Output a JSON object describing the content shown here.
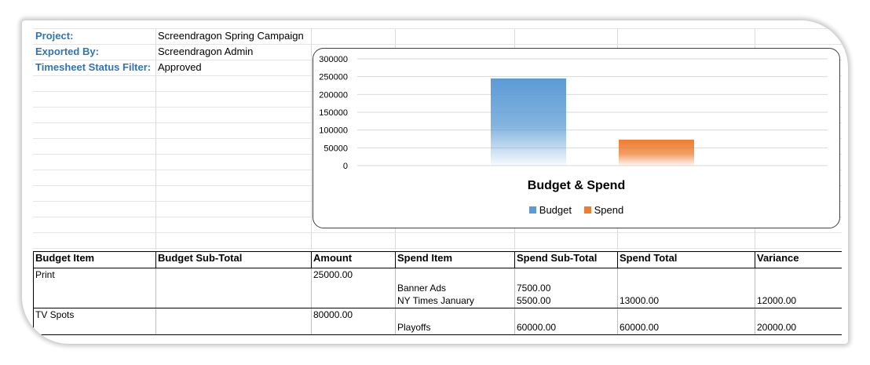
{
  "header": {
    "rows": [
      {
        "label": "Project:",
        "value": "Screendragon Spring Campaign"
      },
      {
        "label": "Exported By:",
        "value": "Screendragon Admin"
      },
      {
        "label": "Timesheet Status Filter:",
        "value": "Approved"
      }
    ]
  },
  "chart_data": {
    "type": "bar",
    "title": "Budget & Spend",
    "categories": [
      ""
    ],
    "series": [
      {
        "name": "Budget",
        "values": [
          245000
        ],
        "color": "#5b9bd5"
      },
      {
        "name": "Spend",
        "values": [
          73000
        ],
        "color": "#ed7d31"
      }
    ],
    "ylim": [
      0,
      300000
    ],
    "yticks": [
      "300000",
      "250000",
      "200000",
      "150000",
      "100000",
      "50000",
      "0"
    ],
    "grid": true,
    "legend": "bottom"
  },
  "table": {
    "columns": [
      "Budget Item",
      "Budget Sub-Total",
      "Amount",
      "Spend Item",
      "Spend Sub-Total",
      "Spend Total",
      "Variance"
    ],
    "rows": [
      [
        "Print",
        "",
        "25000.00",
        "",
        "",
        "",
        ""
      ],
      [
        "",
        "",
        "",
        "Banner Ads",
        "7500.00",
        "",
        ""
      ],
      [
        "",
        "",
        "",
        "NY Times January",
        "5500.00",
        "13000.00",
        "12000.00"
      ],
      [
        "TV Spots",
        "",
        "80000.00",
        "",
        "",
        "",
        ""
      ],
      [
        "",
        "",
        "",
        "Playoffs",
        "60000.00",
        "60000.00",
        "20000.00"
      ]
    ]
  }
}
